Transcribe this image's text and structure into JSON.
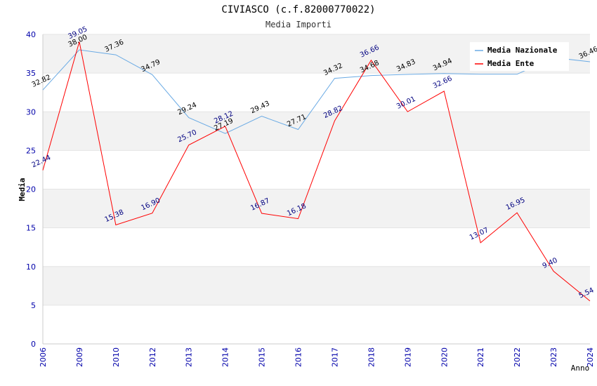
{
  "chart_data": {
    "type": "line",
    "title": "CIVIASCO (c.f.82000770022)",
    "subtitle": "Media Importi",
    "xlabel": "Anno",
    "ylabel": "Media",
    "ylim": [
      0,
      40
    ],
    "yticks": [
      0,
      5,
      10,
      15,
      20,
      25,
      30,
      35,
      40
    ],
    "categories": [
      "2006",
      "2009",
      "2010",
      "2012",
      "2013",
      "2014",
      "2015",
      "2016",
      "2017",
      "2018",
      "2019",
      "2020",
      "2021",
      "2022",
      "2023",
      "2024"
    ],
    "legend_position": "top-right",
    "grid": true,
    "series": [
      {
        "name": "Media Nazionale",
        "color": "#6aaae4",
        "values": [
          32.82,
          38.0,
          37.36,
          34.79,
          29.24,
          27.19,
          29.43,
          27.71,
          34.32,
          34.68,
          34.83,
          34.94,
          34.85,
          34.85,
          37.0,
          36.46
        ],
        "labels": [
          "32.82",
          "38.00",
          "37.36",
          "34.79",
          "29.24",
          "27.19",
          "29.43",
          "27.71",
          "34.32",
          "34.68",
          "34.83",
          "34.94",
          "",
          "",
          "",
          "36.46"
        ]
      },
      {
        "name": "Media Ente",
        "color": "#ff0000",
        "values": [
          22.44,
          39.05,
          15.38,
          16.9,
          25.7,
          28.12,
          16.87,
          16.18,
          28.82,
          36.66,
          30.01,
          32.66,
          13.07,
          16.95,
          9.4,
          5.54
        ],
        "labels": [
          "22.44",
          "39.05",
          "15.38",
          "16.90",
          "25.70",
          "28.12",
          "16.87",
          "16.18",
          "28.82",
          "36.66",
          "30.01",
          "32.66",
          "13.07",
          "16.95",
          "9.40",
          "5.54"
        ]
      }
    ]
  }
}
